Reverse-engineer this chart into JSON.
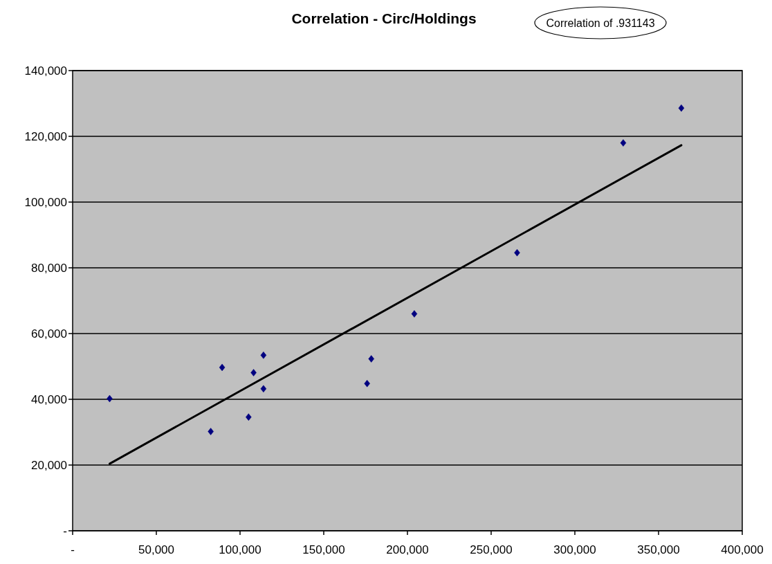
{
  "chart_data": {
    "type": "scatter",
    "title": "Correlation - Circ/Holdings",
    "annotations": [
      "Correlation of .931143"
    ],
    "marker": "diamond",
    "grid": "y",
    "xlim": [
      0,
      400000
    ],
    "xticks": [
      {
        "value": 0,
        "label": "-"
      },
      {
        "value": 50000,
        "label": "50,000"
      },
      {
        "value": 100000,
        "label": "100,000"
      },
      {
        "value": 150000,
        "label": "150,000"
      },
      {
        "value": 200000,
        "label": "200,000"
      },
      {
        "value": 250000,
        "label": "250,000"
      },
      {
        "value": 300000,
        "label": "300,000"
      },
      {
        "value": 350000,
        "label": "350,000"
      },
      {
        "value": 400000,
        "label": "400,000"
      }
    ],
    "ylim": [
      0,
      140000
    ],
    "yticks": [
      {
        "value": 0,
        "label": "-"
      },
      {
        "value": 20000,
        "label": "20,000"
      },
      {
        "value": 40000,
        "label": "40,000"
      },
      {
        "value": 60000,
        "label": "60,000"
      },
      {
        "value": 80000,
        "label": "80,000"
      },
      {
        "value": 100000,
        "label": "100,000"
      },
      {
        "value": 120000,
        "label": "120,000"
      },
      {
        "value": 140000,
        "label": "140,000"
      }
    ],
    "series": [
      {
        "color": "#000080",
        "x": [
          22100,
          82500,
          89300,
          105100,
          108100,
          114000,
          114000,
          175900,
          178400,
          204100,
          265500,
          328900,
          363600
        ],
        "values": [
          40200,
          30200,
          49700,
          34600,
          48100,
          53400,
          43200,
          44800,
          52300,
          66000,
          84600,
          118000,
          128600
        ]
      },
      {
        "type": "line",
        "color": "#000000",
        "marker": "none",
        "x": [
          22100,
          363600
        ],
        "values": [
          20400,
          117300
        ]
      }
    ]
  }
}
